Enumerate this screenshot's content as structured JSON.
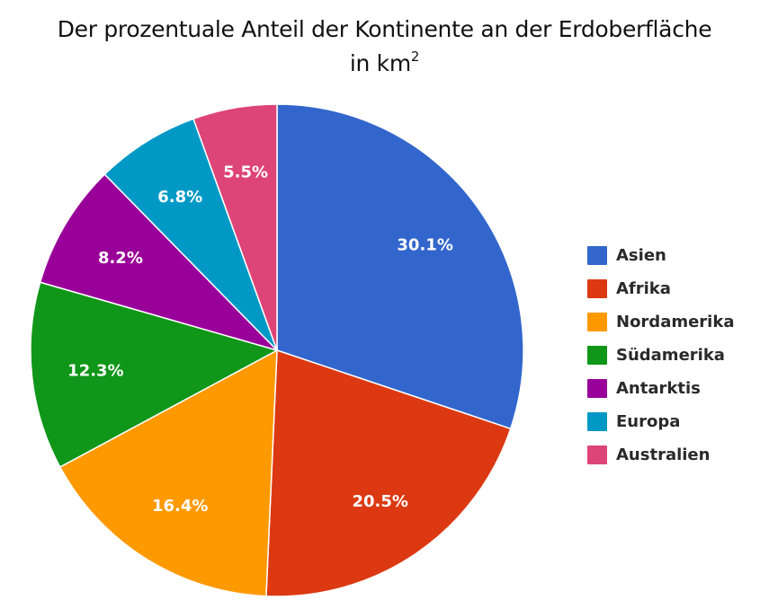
{
  "title": {
    "line1": "Der prozentuale Anteil der Kontinente an der Erdoberfläche",
    "line2_prefix": "in km",
    "line2_sup": "2"
  },
  "chart_data": {
    "type": "pie",
    "title": "Der prozentuale Anteil der Kontinente an der Erdoberfläche in km²",
    "categories": [
      "Asien",
      "Afrika",
      "Nordamerika",
      "Südamerika",
      "Antarktis",
      "Europa",
      "Australien"
    ],
    "values": [
      30.1,
      20.5,
      16.4,
      12.3,
      8.2,
      6.8,
      5.5
    ],
    "labels": [
      "30.1%",
      "20.5%",
      "16.4%",
      "12.3%",
      "8.2%",
      "6.8%",
      "5.5%"
    ],
    "colors": [
      "#3366CC",
      "#DC3912",
      "#FF9900",
      "#109618",
      "#990099",
      "#0099C6",
      "#DD4477"
    ],
    "start_angle": "12 o'clock",
    "direction": "clockwise",
    "legend_position": "right"
  },
  "legend": {
    "items": [
      {
        "label": "Asien",
        "color": "#3366CC"
      },
      {
        "label": "Afrika",
        "color": "#DC3912"
      },
      {
        "label": "Nordamerika",
        "color": "#FF9900"
      },
      {
        "label": "Südamerika",
        "color": "#109618"
      },
      {
        "label": "Antarktis",
        "color": "#990099"
      },
      {
        "label": "Europa",
        "color": "#0099C6"
      },
      {
        "label": "Australien",
        "color": "#DD4477"
      }
    ]
  }
}
